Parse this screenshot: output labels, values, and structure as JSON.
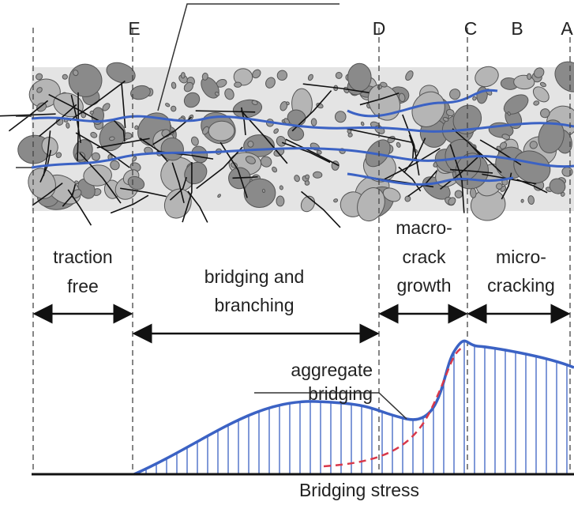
{
  "zone_letters": [
    "E",
    "D",
    "C",
    "B",
    "A"
  ],
  "regions": [
    {
      "lines": [
        "traction",
        "free"
      ]
    },
    {
      "lines": [
        "bridging and",
        "branching"
      ]
    },
    {
      "lines": [
        "macro-",
        "crack",
        "growth"
      ]
    },
    {
      "lines": [
        "micro-",
        "cracking"
      ]
    }
  ],
  "annotation": {
    "lines": [
      "aggregate",
      "bridging"
    ]
  },
  "axis_label": "Bridging stress"
}
